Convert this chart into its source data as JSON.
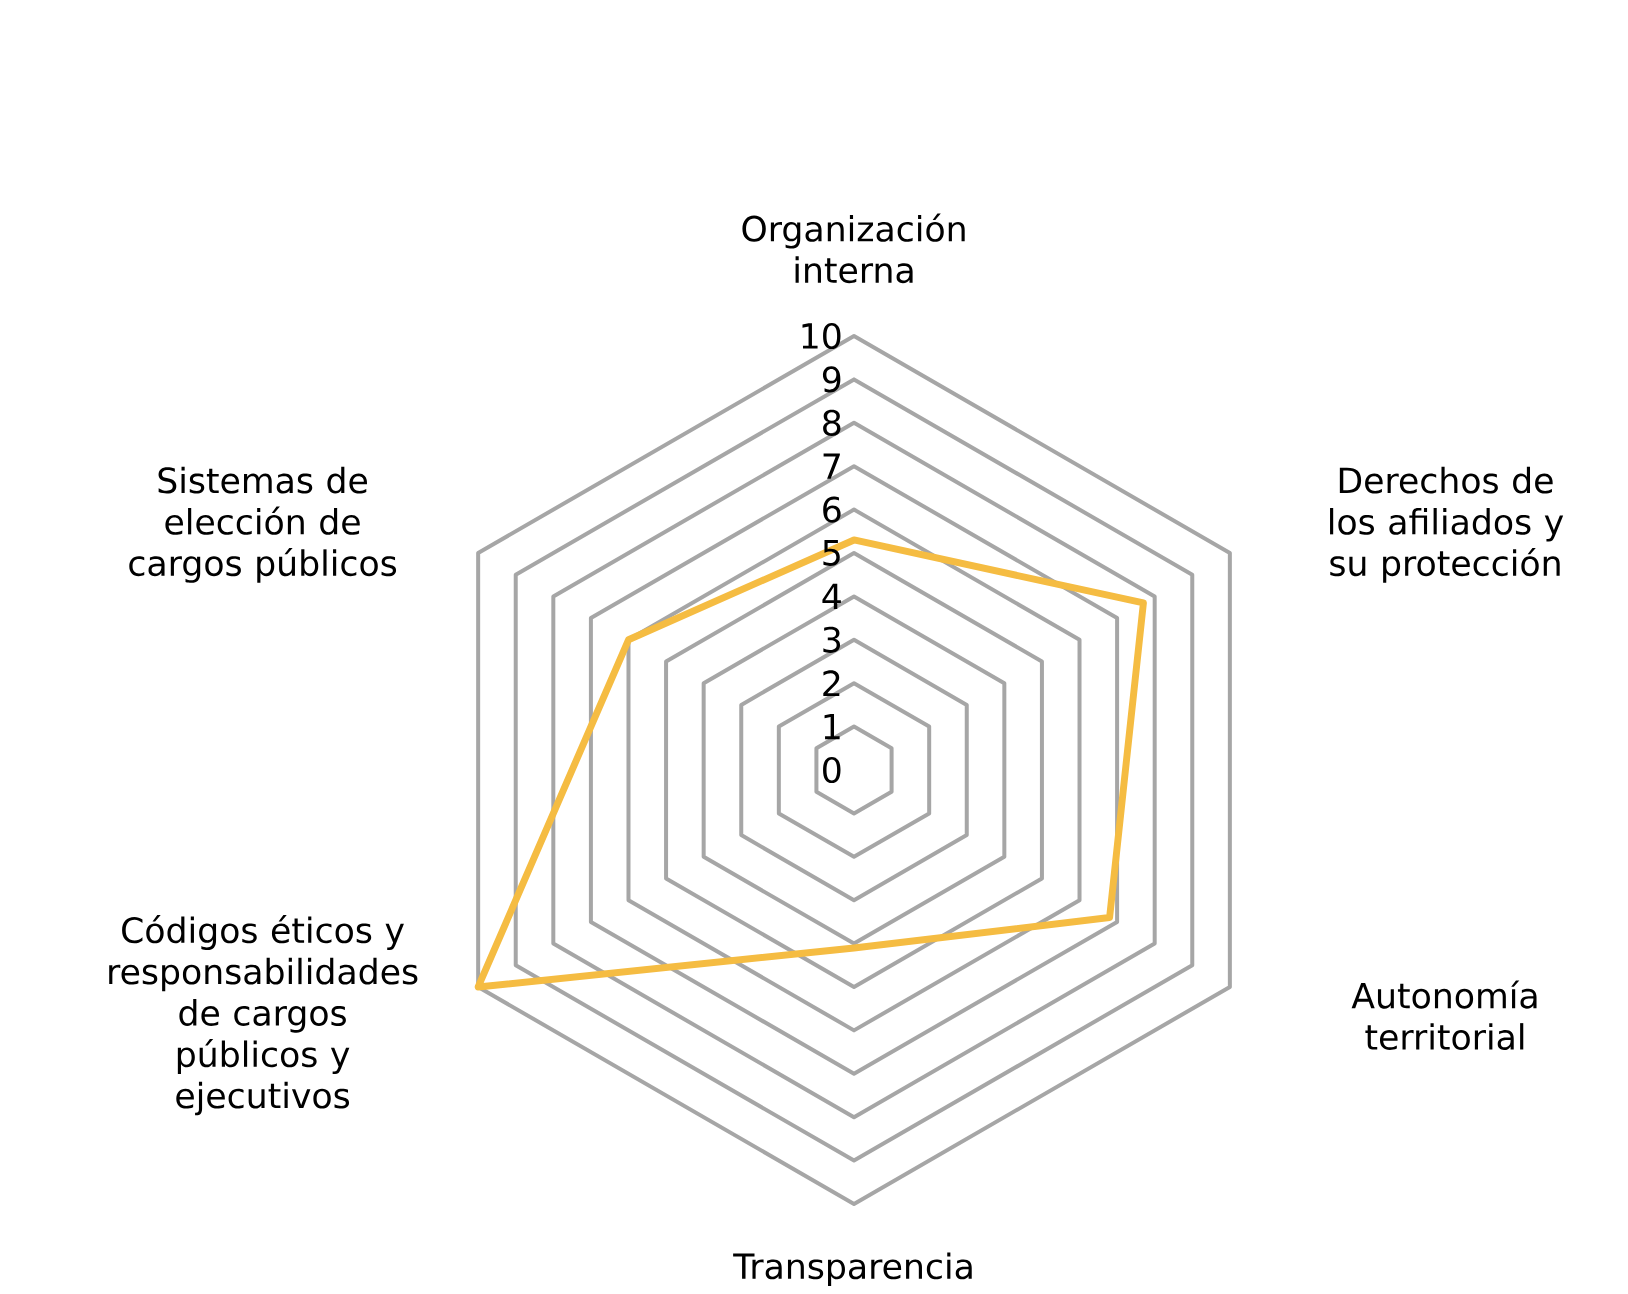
{
  "chart_data": {
    "type": "radar",
    "categories": [
      "Organización interna",
      "Derechos de los afiliados y su protección",
      "Autonomía territorial",
      "Transparencia",
      "Códigos éticos y responsabilidades de cargos públicos y ejecutivos",
      "Sistemas de elección de cargos públicos"
    ],
    "series": [
      {
        "color": "#f5bc42",
        "values": [
          5.3,
          7.7,
          6.8,
          4.1,
          10,
          6.0
        ]
      }
    ],
    "ylim": [
      0,
      10
    ],
    "yticks": [
      0,
      1,
      2,
      3,
      4,
      5,
      6,
      7,
      8,
      9,
      10
    ],
    "grid": true
  }
}
